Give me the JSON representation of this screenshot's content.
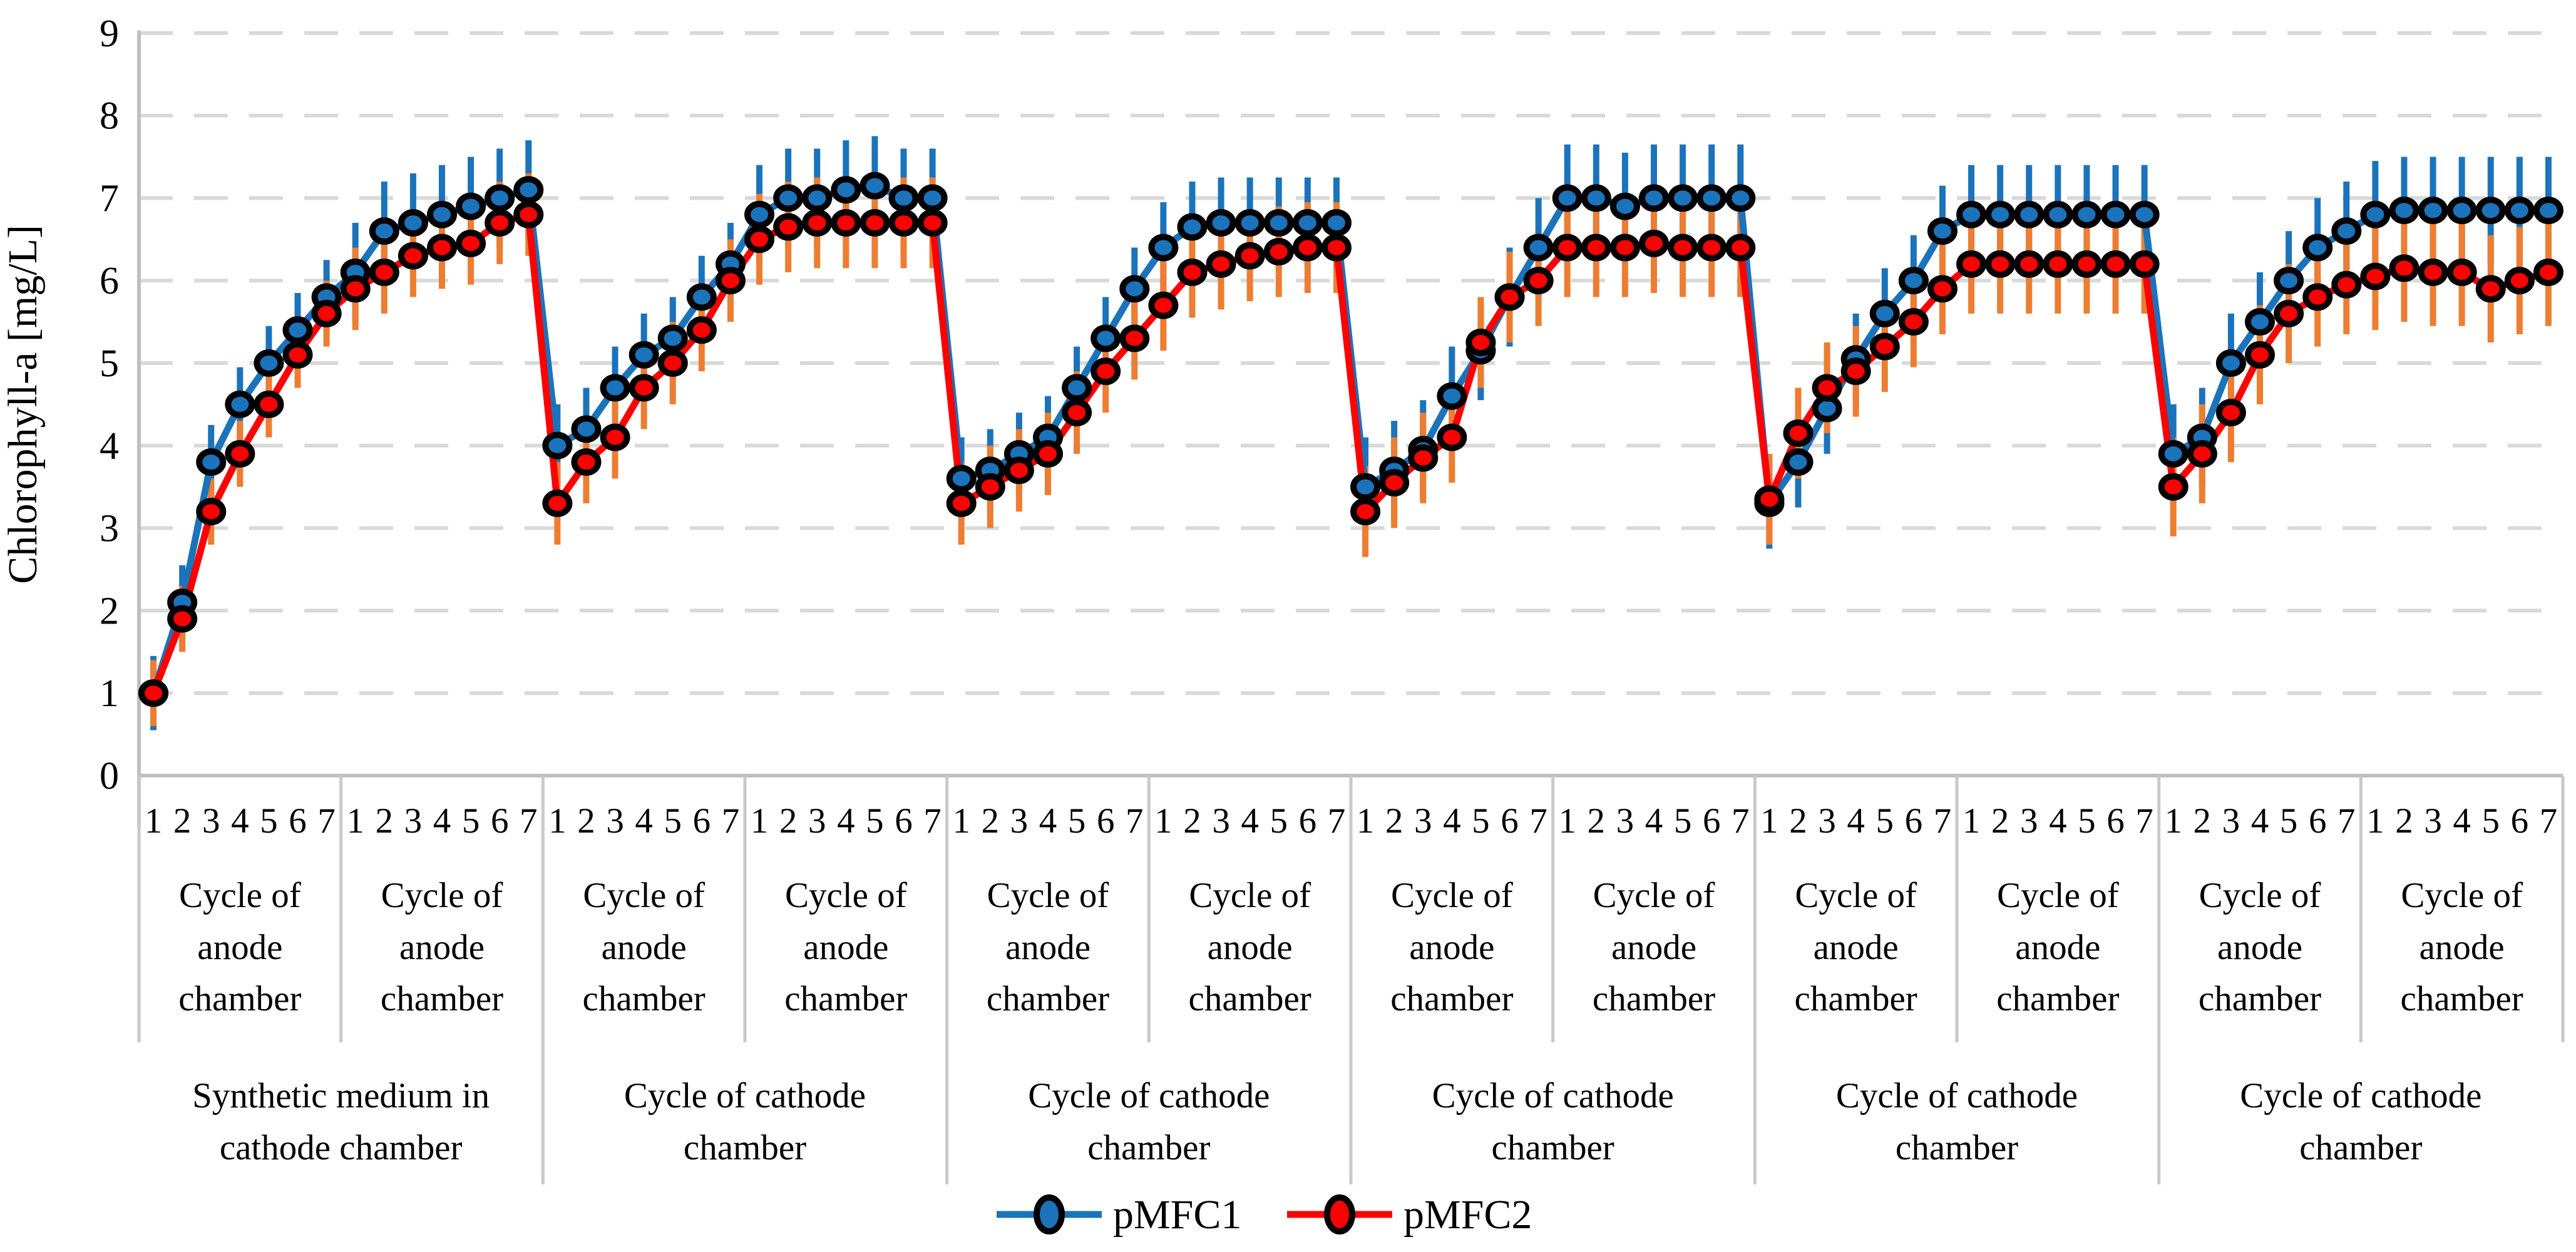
{
  "chart_data": {
    "type": "line",
    "title": "",
    "xlabel": "",
    "ylabel": "Chlorophyll-a [mg/L]",
    "ylim": [
      0,
      9
    ],
    "grid": "horizontal-dashed",
    "legend_position": "bottom-center",
    "y_tick_labels": [
      "0",
      "1",
      "2",
      "3",
      "4",
      "5",
      "6",
      "7",
      "8",
      "9"
    ],
    "x_structure": {
      "groups": 12,
      "points_per_group": 7,
      "point_labels": [
        "1",
        "2",
        "3",
        "4",
        "5",
        "6",
        "7"
      ],
      "group_label_lines": [
        "Cycle of",
        "anode",
        "chamber"
      ],
      "pair_labels": [
        [
          "Synthetic medium in",
          "cathode chamber"
        ],
        [
          "Cycle of cathode",
          "chamber"
        ],
        [
          "Cycle of cathode",
          "chamber"
        ],
        [
          "Cycle of cathode",
          "chamber"
        ],
        [
          "Cycle of cathode",
          "chamber"
        ],
        [
          "Cycle of cathode",
          "chamber"
        ]
      ]
    },
    "series": [
      {
        "name": "pMFC1",
        "color": "#1B73BB",
        "error_color": "#1B73BB",
        "error_by_group": [
          0.45,
          0.6,
          0.5,
          0.6,
          0.5,
          0.55,
          0.6,
          0.65,
          0.55,
          0.6,
          0.6,
          0.65
        ],
        "values": [
          [
            1.0,
            2.1,
            3.8,
            4.5,
            5.0,
            5.4,
            5.8
          ],
          [
            6.1,
            6.6,
            6.7,
            6.8,
            6.9,
            7.0,
            7.1
          ],
          [
            4.0,
            4.2,
            4.7,
            5.1,
            5.3,
            5.8,
            6.2
          ],
          [
            6.8,
            7.0,
            7.0,
            7.1,
            7.15,
            7.0,
            7.0
          ],
          [
            3.6,
            3.7,
            3.9,
            4.1,
            4.7,
            5.3,
            5.9
          ],
          [
            6.4,
            6.65,
            6.7,
            6.7,
            6.7,
            6.7,
            6.7
          ],
          [
            3.5,
            3.7,
            3.95,
            4.6,
            5.15,
            5.8,
            6.4
          ],
          [
            7.0,
            7.0,
            6.9,
            7.0,
            7.0,
            7.0,
            7.0
          ],
          [
            3.3,
            3.8,
            4.45,
            5.05,
            5.6,
            6.0,
            6.6
          ],
          [
            6.8,
            6.8,
            6.8,
            6.8,
            6.8,
            6.8,
            6.8
          ],
          [
            3.9,
            4.1,
            5.0,
            5.5,
            6.0,
            6.4,
            6.6
          ],
          [
            6.8,
            6.85,
            6.85,
            6.85,
            6.85,
            6.85,
            6.85
          ]
        ]
      },
      {
        "name": "pMFC2",
        "color": "#FF0000",
        "error_color": "#ED7D31",
        "error_by_group": [
          0.4,
          0.5,
          0.5,
          0.55,
          0.5,
          0.55,
          0.55,
          0.6,
          0.55,
          0.6,
          0.6,
          0.65
        ],
        "values": [
          [
            1.0,
            1.9,
            3.2,
            3.9,
            4.5,
            5.1,
            5.6
          ],
          [
            5.9,
            6.1,
            6.3,
            6.4,
            6.45,
            6.7,
            6.8
          ],
          [
            3.3,
            3.8,
            4.1,
            4.7,
            5.0,
            5.4,
            6.0
          ],
          [
            6.5,
            6.65,
            6.7,
            6.7,
            6.7,
            6.7,
            6.7
          ],
          [
            3.3,
            3.5,
            3.7,
            3.9,
            4.4,
            4.9,
            5.3
          ],
          [
            5.7,
            6.1,
            6.2,
            6.3,
            6.35,
            6.4,
            6.4
          ],
          [
            3.2,
            3.55,
            3.85,
            4.1,
            5.25,
            5.8,
            6.0
          ],
          [
            6.4,
            6.4,
            6.4,
            6.45,
            6.4,
            6.4,
            6.4
          ],
          [
            3.35,
            4.15,
            4.7,
            4.9,
            5.2,
            5.5,
            5.9
          ],
          [
            6.2,
            6.2,
            6.2,
            6.2,
            6.2,
            6.2,
            6.2
          ],
          [
            3.5,
            3.9,
            4.4,
            5.1,
            5.6,
            5.8,
            5.95
          ],
          [
            6.05,
            6.15,
            6.1,
            6.1,
            5.9,
            6.0,
            6.1
          ]
        ]
      }
    ],
    "colors": {
      "gridline": "#D9D9D9",
      "axis": "#BFBFBF",
      "divider": "#C9C9C9",
      "marker_outline": "#000000",
      "background": "#FFFFFF"
    }
  }
}
